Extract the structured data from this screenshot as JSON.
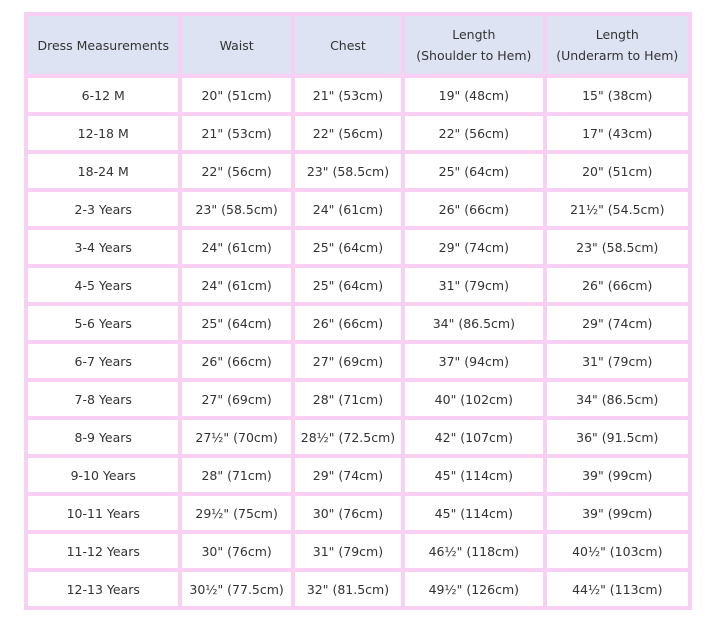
{
  "headers": [
    {
      "line1": "Dress Measurements",
      "line2": ""
    },
    {
      "line1": "Waist",
      "line2": ""
    },
    {
      "line1": "Chest",
      "line2": ""
    },
    {
      "line1": "Length",
      "line2": "(Shoulder to Hem)"
    },
    {
      "line1": "Length",
      "line2": "(Underarm to Hem)"
    }
  ],
  "rows": [
    [
      "6-12 M",
      "20\" (51cm)",
      "21\" (53cm)",
      "19\" (48cm)",
      "15\" (38cm)"
    ],
    [
      "12-18 M",
      "21\" (53cm)",
      "22\" (56cm)",
      "22\" (56cm)",
      "17\" (43cm)"
    ],
    [
      "18-24 M",
      "22\" (56cm)",
      "23\" (58.5cm)",
      "25\" (64cm)",
      "20\" (51cm)"
    ],
    [
      "2-3 Years",
      "23\" (58.5cm)",
      "24\" (61cm)",
      "26\" (66cm)",
      "21½\" (54.5cm)"
    ],
    [
      "3-4 Years",
      "24\" (61cm)",
      "25\" (64cm)",
      "29\" (74cm)",
      "23\" (58.5cm)"
    ],
    [
      "4-5 Years",
      "24\" (61cm)",
      "25\" (64cm)",
      "31\" (79cm)",
      "26\" (66cm)"
    ],
    [
      "5-6 Years",
      "25\" (64cm)",
      "26\" (66cm)",
      "34\" (86.5cm)",
      "29\" (74cm)"
    ],
    [
      "6-7 Years",
      "26\" (66cm)",
      "27\" (69cm)",
      "37\" (94cm)",
      "31\" (79cm)"
    ],
    [
      "7-8 Years",
      "27\" (69cm)",
      "28\" (71cm)",
      "40\" (102cm)",
      "34\" (86.5cm)"
    ],
    [
      "8-9 Years",
      "27½\" (70cm)",
      "28½\" (72.5cm)",
      "42\" (107cm)",
      "36\" (91.5cm)"
    ],
    [
      "9-10 Years",
      "28\" (71cm)",
      "29\" (74cm)",
      "45\" (114cm)",
      "39\" (99cm)"
    ],
    [
      "10-11 Years",
      "29½\" (75cm)",
      "30\" (76cm)",
      "45\" (114cm)",
      "39\" (99cm)"
    ],
    [
      "11-12 Years",
      "30\" (76cm)",
      "31\" (79cm)",
      "46½\" (118cm)",
      "40½\" (103cm)"
    ],
    [
      "12-13 Years",
      "30½\" (77.5cm)",
      "32\" (81.5cm)",
      "49½\" (126cm)",
      "44½\" (113cm)"
    ]
  ],
  "colors": {
    "border": "#f7d0f3",
    "header_bg": "#dde3f3",
    "text": "#333333"
  }
}
